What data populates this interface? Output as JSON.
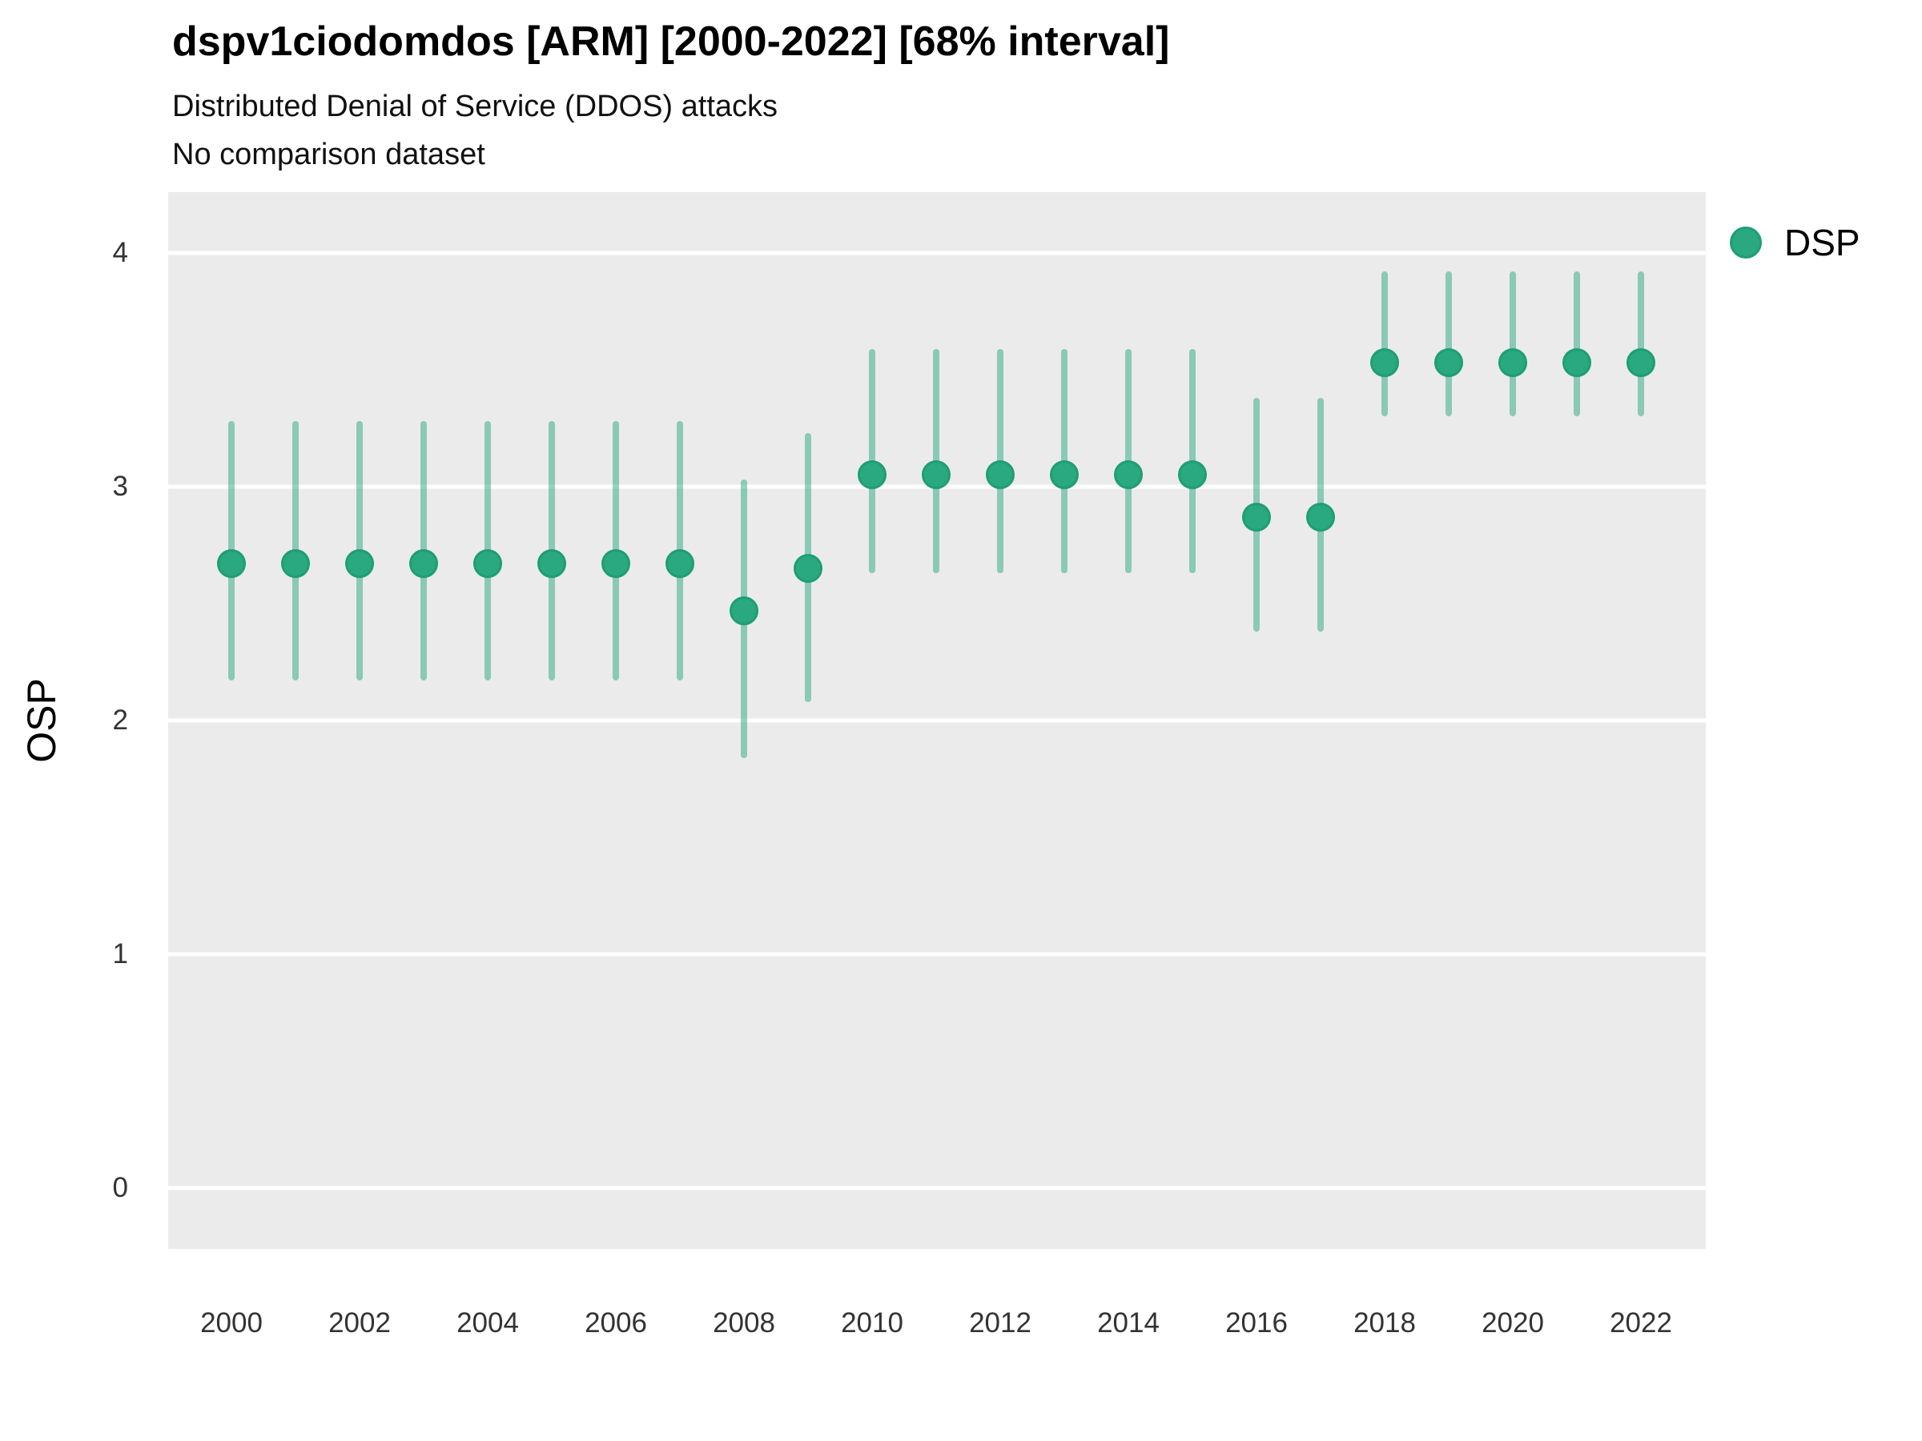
{
  "header": {
    "title": "dspv1ciodomdos [ARM] [2000-2022] [68% interval]",
    "subtitle1": "Distributed Denial of Service (DDOS) attacks",
    "subtitle2": "No comparison dataset"
  },
  "legend": {
    "label": "DSP",
    "position": "right-top"
  },
  "colors": {
    "point_fill": "#2aa87f",
    "point_stroke": "#1e9e74",
    "interval_bar": "rgba(42,168,127,0.5)",
    "panel_background": "#EBEBEB",
    "gridline": "#FFFFFF",
    "tick_text": "#333333",
    "title_text": "#000000"
  },
  "chart_data": {
    "type": "scatter",
    "subtype": "pointrange",
    "title": "dspv1ciodomdos [ARM] [2000-2022] [68% interval]",
    "subtitle": [
      "Distributed Denial of Service (DDOS) attacks",
      "No comparison dataset"
    ],
    "xlabel": "",
    "ylabel": "OSP",
    "interval": "68%",
    "x_tick_labels": [
      2000,
      2002,
      2004,
      2006,
      2008,
      2010,
      2012,
      2014,
      2016,
      2018,
      2020,
      2022
    ],
    "y_tick_labels": [
      0,
      1,
      2,
      3,
      4
    ],
    "xlim": [
      1999,
      2023
    ],
    "ylim": [
      -0.26,
      4.26
    ],
    "grid": "horizontal major gridlines only, white on grey panel",
    "legend_position": "right",
    "series": [
      {
        "name": "DSP",
        "years": [
          2000,
          2001,
          2002,
          2003,
          2004,
          2005,
          2006,
          2007,
          2008,
          2009,
          2010,
          2011,
          2012,
          2013,
          2014,
          2015,
          2016,
          2017,
          2018,
          2019,
          2020,
          2021,
          2022
        ],
        "estimate": [
          2.67,
          2.67,
          2.67,
          2.67,
          2.67,
          2.67,
          2.67,
          2.67,
          2.47,
          2.65,
          3.05,
          3.05,
          3.05,
          3.05,
          3.05,
          3.05,
          2.87,
          2.87,
          3.53,
          3.53,
          3.53,
          3.53,
          3.53
        ],
        "lower": [
          2.17,
          2.17,
          2.17,
          2.17,
          2.17,
          2.17,
          2.17,
          2.17,
          1.84,
          2.08,
          2.63,
          2.63,
          2.63,
          2.63,
          2.63,
          2.63,
          2.38,
          2.38,
          3.3,
          3.3,
          3.3,
          3.3,
          3.3
        ],
        "upper": [
          3.28,
          3.28,
          3.28,
          3.28,
          3.28,
          3.28,
          3.28,
          3.28,
          3.03,
          3.23,
          3.59,
          3.59,
          3.59,
          3.59,
          3.59,
          3.59,
          3.38,
          3.38,
          3.92,
          3.92,
          3.92,
          3.92,
          3.92
        ]
      }
    ]
  }
}
